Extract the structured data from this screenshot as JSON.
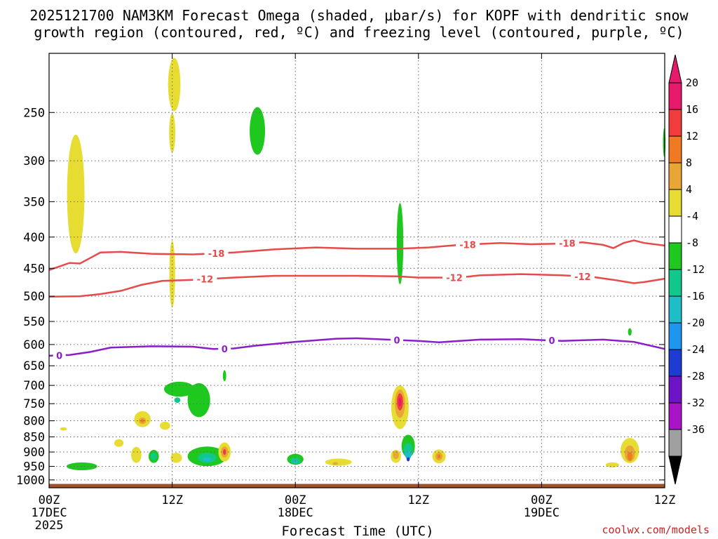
{
  "chart_data": {
    "type": "heatmap",
    "title_line1": "2025121700 NAM3KM Forecast Omega (shaded, μbar/s) for KOPF with dendritic snow",
    "title_line2": "growth region (contoured, red, ºC) and freezing level (contoured, purple, ºC)",
    "xlabel": "Forecast Time (UTC)",
    "credit": "coolwx.com/models",
    "x_hours_range": [
      0,
      60
    ],
    "y_pressure_range_hpa": [
      1030,
      200
    ],
    "x_ticks": [
      {
        "hour": 0,
        "label": "00Z",
        "sub1": "17DEC",
        "sub2": "2025"
      },
      {
        "hour": 12,
        "label": "12Z",
        "sub1": "",
        "sub2": ""
      },
      {
        "hour": 24,
        "label": "00Z",
        "sub1": "18DEC",
        "sub2": ""
      },
      {
        "hour": 36,
        "label": "12Z",
        "sub1": "",
        "sub2": ""
      },
      {
        "hour": 48,
        "label": "00Z",
        "sub1": "19DEC",
        "sub2": ""
      },
      {
        "hour": 60,
        "label": "12Z",
        "sub1": "",
        "sub2": ""
      }
    ],
    "y_ticks": [
      {
        "p": 250,
        "label": "250"
      },
      {
        "p": 300,
        "label": "300"
      },
      {
        "p": 350,
        "label": "350"
      },
      {
        "p": 400,
        "label": "400"
      },
      {
        "p": 450,
        "label": "450"
      },
      {
        "p": 500,
        "label": "500"
      },
      {
        "p": 550,
        "label": "550"
      },
      {
        "p": 600,
        "label": "600"
      },
      {
        "p": 650,
        "label": "650"
      },
      {
        "p": 700,
        "label": "700"
      },
      {
        "p": 750,
        "label": "750"
      },
      {
        "p": 800,
        "label": "800"
      },
      {
        "p": 850,
        "label": "850"
      },
      {
        "p": 900,
        "label": "900"
      },
      {
        "p": 950,
        "label": "950"
      },
      {
        "p": 1000,
        "label": "1000"
      }
    ],
    "colorbar": {
      "units": "μbar/s",
      "bins": [
        {
          "value_label": "20",
          "color": "#e6196b"
        },
        {
          "value_label": "16",
          "color": "#f23c3c"
        },
        {
          "value_label": "12",
          "color": "#f07a23"
        },
        {
          "value_label": "8",
          "color": "#e8a637"
        },
        {
          "value_label": "4",
          "color": "#e6dc32"
        },
        {
          "value_label": "-4",
          "color": "#ffffff"
        },
        {
          "value_label": "-8",
          "color": "#1ec81e"
        },
        {
          "value_label": "-12",
          "color": "#11c88c"
        },
        {
          "value_label": "-16",
          "color": "#1ebec8"
        },
        {
          "value_label": "-20",
          "color": "#1e96f0"
        },
        {
          "value_label": "-24",
          "color": "#1e3cd2"
        },
        {
          "value_label": "-28",
          "color": "#6e14c8"
        },
        {
          "value_label": "-32",
          "color": "#aa14c8"
        },
        {
          "value_label": "-36",
          "color": "#a0a0a0"
        }
      ],
      "top_arrow_color": "#e6196b",
      "bottom_arrow_color": "#000000"
    },
    "contours": [
      {
        "name": "dgz-minus-18",
        "label": "-18",
        "color": "#e84a4a",
        "label_hours": [
          16.3,
          40.8,
          50.5
        ],
        "points": [
          [
            0,
            453
          ],
          [
            2,
            441
          ],
          [
            3,
            442
          ],
          [
            4,
            433
          ],
          [
            5,
            424
          ],
          [
            7,
            423
          ],
          [
            10,
            426
          ],
          [
            14,
            427
          ],
          [
            18,
            424
          ],
          [
            22,
            419
          ],
          [
            26,
            416
          ],
          [
            30,
            418
          ],
          [
            34,
            418
          ],
          [
            37,
            416
          ],
          [
            40,
            412
          ],
          [
            44,
            409
          ],
          [
            47,
            411
          ],
          [
            50,
            410
          ],
          [
            52,
            408
          ],
          [
            54,
            412
          ],
          [
            55,
            417
          ],
          [
            56,
            409
          ],
          [
            57,
            405
          ],
          [
            58,
            409
          ],
          [
            60,
            413
          ]
        ]
      },
      {
        "name": "dgz-minus-12",
        "label": "-12",
        "color": "#e84a4a",
        "label_hours": [
          15.2,
          39.5,
          52.0
        ],
        "points": [
          [
            0,
            501
          ],
          [
            3,
            500
          ],
          [
            5,
            496
          ],
          [
            7,
            490
          ],
          [
            9,
            479
          ],
          [
            11,
            472
          ],
          [
            14,
            470
          ],
          [
            18,
            466
          ],
          [
            22,
            463
          ],
          [
            26,
            463
          ],
          [
            30,
            463
          ],
          [
            34,
            464
          ],
          [
            36,
            466
          ],
          [
            40,
            466
          ],
          [
            42,
            462
          ],
          [
            46,
            460
          ],
          [
            50,
            462
          ],
          [
            53,
            465
          ],
          [
            55,
            470
          ],
          [
            57,
            476
          ],
          [
            58,
            474
          ],
          [
            60,
            468
          ]
        ]
      },
      {
        "name": "freezing-level-0",
        "label": "0",
        "color": "#8c1ec8",
        "label_hours": [
          1.0,
          17.1,
          33.9,
          49.0
        ],
        "points": [
          [
            0,
            626
          ],
          [
            2,
            624
          ],
          [
            4,
            617
          ],
          [
            6,
            607
          ],
          [
            10,
            604
          ],
          [
            14,
            605
          ],
          [
            16,
            610
          ],
          [
            18,
            609
          ],
          [
            20,
            603
          ],
          [
            24,
            594
          ],
          [
            28,
            587
          ],
          [
            30,
            586
          ],
          [
            33,
            589
          ],
          [
            36,
            592
          ],
          [
            38,
            595
          ],
          [
            40,
            592
          ],
          [
            42,
            589
          ],
          [
            46,
            588
          ],
          [
            50,
            592
          ],
          [
            54,
            589
          ],
          [
            57,
            594
          ],
          [
            60,
            610
          ]
        ]
      }
    ],
    "omega_features": [
      {
        "name": "ascent-upper-1",
        "bin": "4",
        "hour": 2.6,
        "p": 340,
        "dh": 0.85,
        "dp": 150
      },
      {
        "name": "ascent-upper-2",
        "bin": "4",
        "hour": 12.2,
        "p": 225,
        "dh": 0.6,
        "dp": 45
      },
      {
        "name": "ascent-upper-3",
        "bin": "4",
        "hour": 12.0,
        "p": 270,
        "dh": 0.3,
        "dp": 40
      },
      {
        "name": "ascent-mid-strip",
        "bin": "4",
        "hour": 12.0,
        "p": 460,
        "dh": 0.28,
        "dp": 115
      },
      {
        "name": "descent-upper-1",
        "bin": "-8",
        "hour": 20.3,
        "p": 268,
        "dh": 0.75,
        "dp": 48
      },
      {
        "name": "descent-mid-strip",
        "bin": "-8",
        "hour": 34.2,
        "p": 410,
        "dh": 0.32,
        "dp": 125
      },
      {
        "name": "descent-edge-upper",
        "bin": "-8",
        "hour": 59.95,
        "p": 280,
        "dh": 0.12,
        "dp": 30
      },
      {
        "name": "descent-small-1",
        "bin": "-8",
        "hour": 56.6,
        "p": 572,
        "dh": 0.18,
        "dp": 16
      },
      {
        "name": "descent-small-2",
        "bin": "-8",
        "hour": 17.1,
        "p": 675,
        "dh": 0.16,
        "dp": 28
      },
      {
        "name": "descent-low-1",
        "bin": "-8",
        "hour": 3.2,
        "p": 950,
        "dh": 1.5,
        "dp": 28
      },
      {
        "name": "descent-low-2",
        "bin": "-8",
        "hour": 12.7,
        "p": 710,
        "dh": 1.5,
        "dp": 40
      },
      {
        "name": "descent-low-3",
        "bin": "-8",
        "hour": 14.6,
        "p": 740,
        "dh": 1.1,
        "dp": 95
      },
      {
        "name": "descent-low-3b",
        "bin": "-12",
        "hour": 12.5,
        "p": 740,
        "dh": 0.3,
        "dp": 15
      },
      {
        "name": "descent-low-4",
        "bin": "-8",
        "hour": 15.4,
        "p": 915,
        "dh": 1.9,
        "dp": 68
      },
      {
        "name": "descent-low-4b",
        "bin": "-12",
        "hour": 15.4,
        "p": 920,
        "dh": 0.9,
        "dp": 35
      },
      {
        "name": "descent-low-4c",
        "bin": "-16",
        "hour": 15.4,
        "p": 925,
        "dh": 0.4,
        "dp": 15
      },
      {
        "name": "descent-low-5",
        "bin": "-8",
        "hour": 10.2,
        "p": 915,
        "dh": 0.5,
        "dp": 45
      },
      {
        "name": "descent-low-5b",
        "bin": "-12",
        "hour": 10.2,
        "p": 915,
        "dh": 0.3,
        "dp": 25
      },
      {
        "name": "descent-low-6",
        "bin": "-8",
        "hour": 24.0,
        "p": 925,
        "dh": 0.8,
        "dp": 38
      },
      {
        "name": "descent-low-6b",
        "bin": "-12",
        "hour": 24.0,
        "p": 930,
        "dh": 0.5,
        "dp": 22
      },
      {
        "name": "descent-low-6c",
        "bin": "-16",
        "hour": 24.0,
        "p": 935,
        "dh": 0.2,
        "dp": 10
      },
      {
        "name": "descent-low-7",
        "bin": "-8",
        "hour": 35.0,
        "p": 880,
        "dh": 0.65,
        "dp": 75
      },
      {
        "name": "descent-low-7b",
        "bin": "-12",
        "hour": 35.0,
        "p": 895,
        "dh": 0.45,
        "dp": 50
      },
      {
        "name": "descent-low-7c",
        "bin": "-16",
        "hour": 35.0,
        "p": 910,
        "dh": 0.3,
        "dp": 30
      },
      {
        "name": "descent-low-7d",
        "bin": "-24",
        "hour": 35.0,
        "p": 925,
        "dh": 0.15,
        "dp": 15
      },
      {
        "name": "ascent-low-1",
        "bin": "4",
        "hour": 1.4,
        "p": 825,
        "dh": 0.35,
        "dp": 10
      },
      {
        "name": "ascent-low-2",
        "bin": "4",
        "hour": 6.8,
        "p": 870,
        "dh": 0.45,
        "dp": 25
      },
      {
        "name": "ascent-low-3",
        "bin": "4",
        "hour": 9.1,
        "p": 795,
        "dh": 0.8,
        "dp": 48
      },
      {
        "name": "ascent-low-3b",
        "bin": "8",
        "hour": 9.1,
        "p": 800,
        "dh": 0.35,
        "dp": 20
      },
      {
        "name": "ascent-low-3c",
        "bin": "12",
        "hour": 9.1,
        "p": 800,
        "dh": 0.15,
        "dp": 10
      },
      {
        "name": "ascent-low-4",
        "bin": "4",
        "hour": 11.3,
        "p": 815,
        "dh": 0.5,
        "dp": 25
      },
      {
        "name": "ascent-low-5",
        "bin": "4",
        "hour": 8.5,
        "p": 910,
        "dh": 0.5,
        "dp": 55
      },
      {
        "name": "ascent-low-6",
        "bin": "4",
        "hour": 12.4,
        "p": 920,
        "dh": 0.55,
        "dp": 35
      },
      {
        "name": "ascent-low-7",
        "bin": "4",
        "hour": 17.1,
        "p": 900,
        "dh": 0.6,
        "dp": 65
      },
      {
        "name": "ascent-low-7b",
        "bin": "8",
        "hour": 17.1,
        "p": 900,
        "dh": 0.35,
        "dp": 38
      },
      {
        "name": "ascent-low-7c",
        "bin": "16",
        "hour": 17.1,
        "p": 900,
        "dh": 0.15,
        "dp": 20
      },
      {
        "name": "ascent-low-8",
        "bin": "4",
        "hour": 28.2,
        "p": 935,
        "dh": 1.3,
        "dp": 25
      },
      {
        "name": "ascent-low-8b",
        "bin": "8",
        "hour": 27.9,
        "p": 940,
        "dh": 0.25,
        "dp": 10
      },
      {
        "name": "ascent-low-9",
        "bin": "4",
        "hour": 34.2,
        "p": 760,
        "dh": 0.85,
        "dp": 125
      },
      {
        "name": "ascent-low-9b",
        "bin": "8",
        "hour": 34.2,
        "p": 750,
        "dh": 0.5,
        "dp": 80
      },
      {
        "name": "ascent-low-9c",
        "bin": "16",
        "hour": 34.2,
        "p": 745,
        "dh": 0.3,
        "dp": 48
      },
      {
        "name": "ascent-low-9d",
        "bin": "20",
        "hour": 34.2,
        "p": 745,
        "dh": 0.15,
        "dp": 25
      },
      {
        "name": "ascent-low-10",
        "bin": "4",
        "hour": 33.8,
        "p": 915,
        "dh": 0.5,
        "dp": 45
      },
      {
        "name": "ascent-low-10b",
        "bin": "8",
        "hour": 33.8,
        "p": 910,
        "dh": 0.3,
        "dp": 28
      },
      {
        "name": "ascent-low-11",
        "bin": "4",
        "hour": 38.0,
        "p": 915,
        "dh": 0.65,
        "dp": 48
      },
      {
        "name": "ascent-low-11b",
        "bin": "8",
        "hour": 38.0,
        "p": 915,
        "dh": 0.35,
        "dp": 28
      },
      {
        "name": "ascent-low-11c",
        "bin": "12",
        "hour": 38.0,
        "p": 915,
        "dh": 0.15,
        "dp": 15
      },
      {
        "name": "ascent-low-12",
        "bin": "4",
        "hour": 54.9,
        "p": 945,
        "dh": 0.65,
        "dp": 18
      },
      {
        "name": "ascent-low-13",
        "bin": "4",
        "hour": 56.6,
        "p": 895,
        "dh": 0.9,
        "dp": 85
      },
      {
        "name": "ascent-low-13b",
        "bin": "8",
        "hour": 56.6,
        "p": 905,
        "dh": 0.5,
        "dp": 55
      },
      {
        "name": "ascent-low-13c",
        "bin": "12",
        "hour": 56.6,
        "p": 915,
        "dh": 0.25,
        "dp": 30
      }
    ],
    "terrain_color": "#a0522d"
  }
}
